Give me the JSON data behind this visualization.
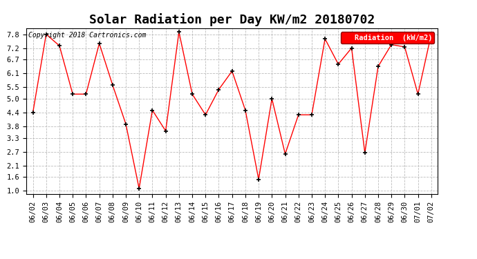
{
  "title": "Solar Radiation per Day KW/m2 20180702",
  "copyright_text": "Copyright 2018 Cartronics.com",
  "legend_label": "Radiation  (kW/m2)",
  "x_labels": [
    "06/02",
    "06/03",
    "06/04",
    "06/05",
    "06/06",
    "06/07",
    "06/08",
    "06/09",
    "06/10",
    "06/11",
    "06/12",
    "06/13",
    "06/14",
    "06/15",
    "06/16",
    "06/17",
    "06/18",
    "06/19",
    "06/20",
    "06/21",
    "06/22",
    "06/23",
    "06/24",
    "06/25",
    "06/26",
    "06/27",
    "06/28",
    "06/29",
    "06/30",
    "07/01",
    "07/02"
  ],
  "y_values": [
    4.4,
    7.8,
    7.3,
    5.2,
    5.2,
    7.4,
    5.6,
    3.9,
    1.1,
    4.5,
    3.6,
    7.9,
    5.2,
    4.3,
    5.4,
    6.2,
    4.5,
    1.5,
    5.0,
    2.6,
    4.3,
    4.3,
    7.6,
    6.5,
    7.2,
    2.65,
    6.4,
    7.35,
    7.25,
    5.2,
    7.8
  ],
  "y_ticks": [
    1.0,
    1.6,
    2.1,
    2.7,
    3.3,
    3.8,
    4.4,
    5.0,
    5.5,
    6.1,
    6.7,
    7.2,
    7.8
  ],
  "line_color": "red",
  "marker_color": "black",
  "marker_style": "+",
  "background_color": "white",
  "grid_color": "#bbbbbb",
  "legend_bg_color": "red",
  "legend_text_color": "white",
  "ylim": [
    0.85,
    8.05
  ],
  "title_fontsize": 13,
  "copyright_fontsize": 7,
  "axis_fontsize": 7.5
}
